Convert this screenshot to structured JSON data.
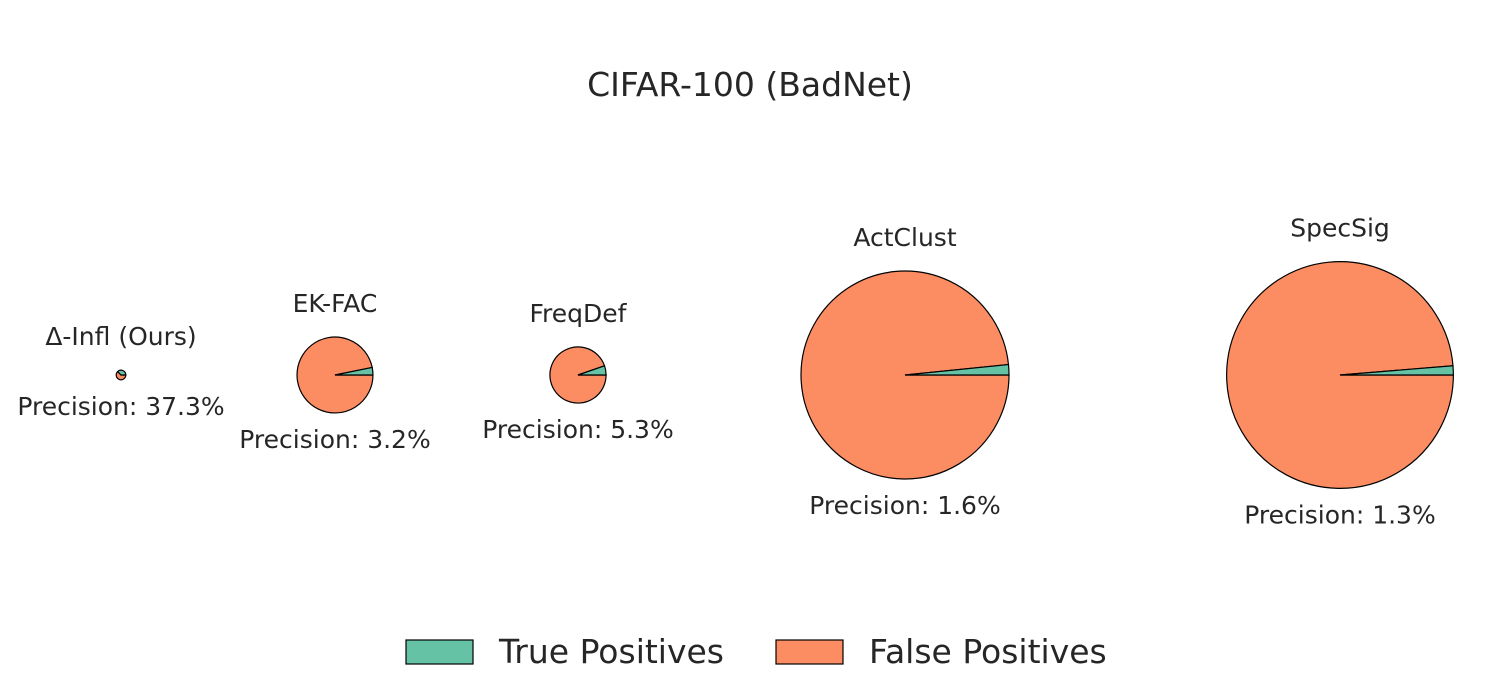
{
  "chart_data": {
    "type": "pie",
    "title": "CIFAR-100 (BadNet)",
    "colors": {
      "true_positives": "#66c2a5",
      "false_positives": "#fc8d62",
      "edge": "#000000"
    },
    "legend": {
      "placement": "bottom-center",
      "entries": [
        {
          "label": "True Positives",
          "color": "#66c2a5"
        },
        {
          "label": "False Positives",
          "color": "#fc8d62"
        }
      ]
    },
    "pies": [
      {
        "method": "Δ-Infl (Ours)",
        "precision_label": "Precision: 37.3%",
        "precision": 37.3,
        "relative_size": 0.046
      },
      {
        "method": "EK-FAC",
        "precision_label": "Precision: 3.2%",
        "precision": 3.2,
        "relative_size": 0.365
      },
      {
        "method": "FreqDef",
        "precision_label": "Precision: 5.3%",
        "precision": 5.3,
        "relative_size": 0.27
      },
      {
        "method": "ActClust",
        "precision_label": "Precision: 1.6%",
        "precision": 1.6,
        "relative_size": 1.0
      },
      {
        "method": "SpecSig",
        "precision_label": "Precision: 1.3%",
        "precision": 1.3,
        "relative_size": 1.09
      }
    ]
  }
}
